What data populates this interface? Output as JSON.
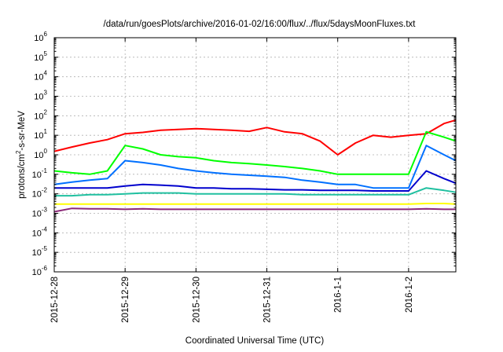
{
  "chart_data": {
    "type": "line",
    "title": "/data/run/goesPlots/archive/2016-01-02/16:00/flux/../flux/5daysMoonFluxes.txt",
    "xlabel": "Coordinated Universal Time (UTC)",
    "ylabel": "protons/cm²-s-sr-MeV",
    "yscale": "log",
    "ylim": [
      1e-06,
      1000000.0
    ],
    "xlim": [
      "2015-12-28",
      "2016-01-02T16:00"
    ],
    "grid": true,
    "x_ticks": [
      {
        "date": "2015-12-28",
        "label": "2015-12-28"
      },
      {
        "date": "2015-12-29",
        "label": "2015-12-29"
      },
      {
        "date": "2015-12-30",
        "label": "2015-12-30"
      },
      {
        "date": "2015-12-31",
        "label": "2015-12-31"
      },
      {
        "date": "2016-01-01",
        "label": "2016-1-1"
      },
      {
        "date": "2016-01-02",
        "label": "2016-1-2"
      }
    ],
    "y_ticks": [
      {
        "value": 1e-06,
        "base": "10",
        "exp": "-6"
      },
      {
        "value": 1e-05,
        "base": "10",
        "exp": "-5"
      },
      {
        "value": 0.0001,
        "base": "10",
        "exp": "-4"
      },
      {
        "value": 0.001,
        "base": "10",
        "exp": "-3"
      },
      {
        "value": 0.01,
        "base": "10",
        "exp": "-2"
      },
      {
        "value": 0.1,
        "base": "10",
        "exp": "-1"
      },
      {
        "value": 1,
        "base": "10",
        "exp": "0"
      },
      {
        "value": 10,
        "base": "10",
        "exp": "1"
      },
      {
        "value": 100,
        "base": "10",
        "exp": "2"
      },
      {
        "value": 1000,
        "base": "10",
        "exp": "3"
      },
      {
        "value": 10000,
        "base": "10",
        "exp": "4"
      },
      {
        "value": 100000,
        "base": "10",
        "exp": "5"
      },
      {
        "value": 1000000,
        "base": "10",
        "exp": "6"
      }
    ],
    "x": [
      "2015-12-28T00:00",
      "2015-12-28T06:00",
      "2015-12-28T12:00",
      "2015-12-28T18:00",
      "2015-12-29T00:00",
      "2015-12-29T06:00",
      "2015-12-29T12:00",
      "2015-12-29T18:00",
      "2015-12-30T00:00",
      "2015-12-30T06:00",
      "2015-12-30T12:00",
      "2015-12-30T18:00",
      "2015-12-31T00:00",
      "2015-12-31T06:00",
      "2015-12-31T12:00",
      "2015-12-31T18:00",
      "2016-01-01T00:00",
      "2016-01-01T06:00",
      "2016-01-01T12:00",
      "2016-01-01T18:00",
      "2016-01-02T00:00",
      "2016-01-02T06:00",
      "2016-01-02T12:00",
      "2016-01-02T16:00"
    ],
    "series": [
      {
        "color": "#ff0000",
        "values": [
          1.5,
          2.5,
          4,
          6,
          12,
          14,
          18,
          20,
          22,
          20,
          18,
          16,
          25,
          15,
          12,
          5,
          1,
          4,
          10,
          8,
          10,
          12,
          40,
          60
        ]
      },
      {
        "color": "#00ff00",
        "values": [
          0.15,
          0.12,
          0.1,
          0.15,
          3,
          2,
          1,
          0.8,
          0.7,
          0.5,
          0.4,
          0.35,
          0.3,
          0.25,
          0.2,
          0.15,
          0.1,
          0.1,
          0.1,
          0.1,
          0.1,
          15,
          8,
          5
        ]
      },
      {
        "color": "#0070ff",
        "values": [
          0.03,
          0.04,
          0.05,
          0.06,
          0.5,
          0.4,
          0.3,
          0.2,
          0.15,
          0.12,
          0.1,
          0.09,
          0.08,
          0.07,
          0.05,
          0.04,
          0.03,
          0.03,
          0.02,
          0.02,
          0.02,
          3,
          1,
          0.5
        ]
      },
      {
        "color": "#0000cd",
        "values": [
          0.02,
          0.02,
          0.02,
          0.02,
          0.025,
          0.03,
          0.028,
          0.025,
          0.02,
          0.02,
          0.018,
          0.018,
          0.017,
          0.016,
          0.016,
          0.015,
          0.015,
          0.015,
          0.014,
          0.014,
          0.014,
          0.15,
          0.06,
          0.035
        ]
      },
      {
        "color": "#20c0a0",
        "values": [
          0.008,
          0.008,
          0.009,
          0.009,
          0.01,
          0.011,
          0.011,
          0.011,
          0.01,
          0.01,
          0.01,
          0.01,
          0.01,
          0.01,
          0.009,
          0.009,
          0.009,
          0.009,
          0.009,
          0.009,
          0.009,
          0.02,
          0.015,
          0.012
        ]
      },
      {
        "color": "#ffff00",
        "values": [
          0.003,
          0.003,
          0.003,
          0.003,
          0.003,
          0.003,
          0.003,
          0.003,
          0.003,
          0.003,
          0.003,
          0.003,
          0.003,
          0.003,
          0.003,
          0.003,
          0.003,
          0.003,
          0.003,
          0.003,
          0.003,
          0.0032,
          0.0032,
          0.003
        ]
      },
      {
        "color": "#8b2878",
        "values": [
          0.0012,
          0.0018,
          0.0017,
          0.0017,
          0.0016,
          0.0017,
          0.0016,
          0.0016,
          0.0016,
          0.0016,
          0.0016,
          0.0016,
          0.0016,
          0.0016,
          0.0016,
          0.0016,
          0.0016,
          0.0016,
          0.0016,
          0.0016,
          0.0016,
          0.0017,
          0.0016,
          0.0016
        ]
      }
    ]
  }
}
